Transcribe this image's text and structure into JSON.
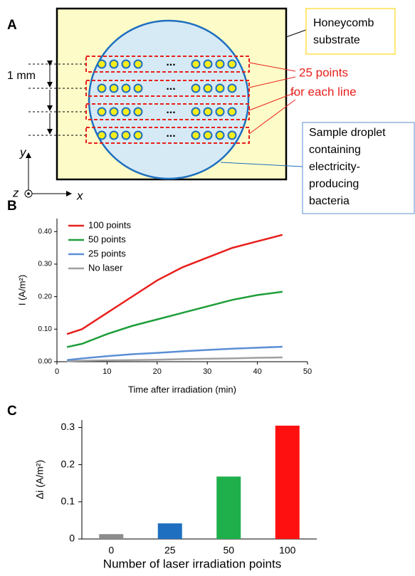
{
  "diagram": {
    "panel_label": "A",
    "scale_label": "1 mm",
    "axes": {
      "y": "y",
      "x": "x",
      "z": "z"
    },
    "substrate_label": [
      "Honeycomb",
      "substrate"
    ],
    "points_label": [
      "25 points",
      "for each line"
    ],
    "droplet_label": [
      "Sample droplet",
      "containing",
      "electricity-",
      "producing",
      "bacteria"
    ],
    "ellipsis": "..."
  },
  "chart_data": [
    {
      "type": "line",
      "panel_label": "B",
      "x_label": "Time after irradiation (min)",
      "y_label": "I (A/m²)",
      "x": [
        2,
        5,
        10,
        15,
        20,
        25,
        30,
        35,
        40,
        45
      ],
      "series": [
        {
          "name": "100 points",
          "color": "#e8201c",
          "values": [
            0.085,
            0.1,
            0.15,
            0.2,
            0.25,
            0.29,
            0.32,
            0.35,
            0.37,
            0.39
          ]
        },
        {
          "name": "50 points",
          "color": "#1e9e3a",
          "values": [
            0.045,
            0.055,
            0.085,
            0.11,
            0.13,
            0.15,
            0.17,
            0.19,
            0.205,
            0.215
          ]
        },
        {
          "name": "25 points",
          "color": "#5b8fd6",
          "values": [
            0.005,
            0.01,
            0.017,
            0.023,
            0.027,
            0.032,
            0.036,
            0.04,
            0.043,
            0.046
          ]
        },
        {
          "name": "No laser",
          "color": "#a0a0a0",
          "values": [
            0.002,
            0.003,
            0.004,
            0.005,
            0.006,
            0.008,
            0.009,
            0.01,
            0.012,
            0.013
          ]
        }
      ],
      "xlim": [
        0,
        50
      ],
      "xticks": [
        0,
        10,
        20,
        30,
        40,
        50
      ],
      "ylim": [
        0,
        0.44
      ],
      "yticks": [
        {
          "value": 0,
          "label": "0.00"
        },
        {
          "value": 0.1,
          "label": "0.10"
        },
        {
          "value": 0.2,
          "label": "0.20"
        },
        {
          "value": 0.3,
          "label": "0.30"
        },
        {
          "value": 0.4,
          "label": "0.40"
        }
      ],
      "legend": "upper-left"
    },
    {
      "type": "bar",
      "panel_label": "C",
      "x_label": "Number of laser irradiation points",
      "y_label": "Δi (A/m²)",
      "categories": [
        "0",
        "25",
        "50",
        "100"
      ],
      "values": [
        0.013,
        0.042,
        0.168,
        0.305
      ],
      "colors": [
        "#8c8c8c",
        "#1f6fc0",
        "#1fb04b",
        "#ff1010"
      ],
      "ylim": [
        0,
        0.32
      ],
      "yticks": [
        0,
        0.1,
        0.2,
        0.3
      ]
    }
  ]
}
